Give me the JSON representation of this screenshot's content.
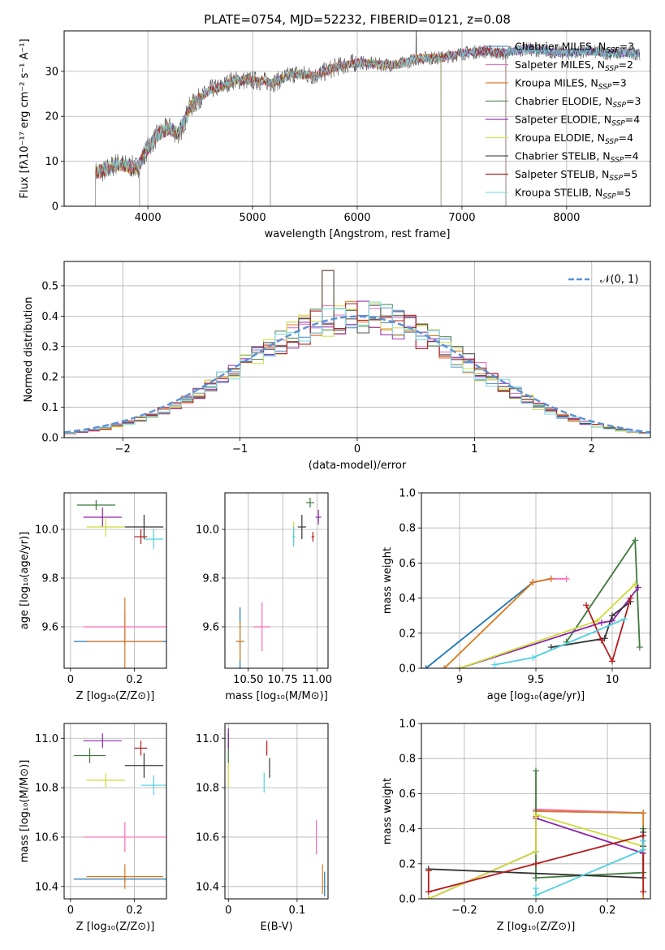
{
  "figure": {
    "title": "PLATE=0754, MJD=52232, FIBERID=0121, z=0.08"
  },
  "colors": {
    "models": [
      "#1f77b4",
      "#ff69b4",
      "#d97a1c",
      "#3d7a3d",
      "#8e24aa",
      "#cddc39",
      "#333333",
      "#b71c1c",
      "#4dd0e1"
    ],
    "spec_models": [
      "#5b8fd6",
      "#e377c2",
      "#e07b24",
      "#5a8a5a",
      "#9c3bb0",
      "#d4e157",
      "#555555",
      "#b22222",
      "#80deea"
    ],
    "normal_curve": "#5b8fd6",
    "grid": "#b0b0b0"
  },
  "chart_data": [
    {
      "type": "line",
      "panel": "spectrum",
      "xlabel": "wavelength [Angstrom, rest frame]",
      "ylabel": "Flux [fλ10⁻¹⁷ erg cm⁻² s⁻¹ A⁻¹]",
      "xlim": [
        3200,
        8800
      ],
      "ylim": [
        0,
        39
      ],
      "xticks": [
        4000,
        5000,
        6000,
        7000,
        8000
      ],
      "yticks": [
        0,
        10,
        20,
        30
      ],
      "continuum": {
        "x": [
          3500,
          3600,
          3700,
          3800,
          3900,
          4000,
          4100,
          4200,
          4300,
          4400,
          4500,
          4600,
          4700,
          4800,
          5000,
          5200,
          5400,
          5600,
          5800,
          6000,
          6200,
          6400,
          6600,
          6800,
          7000,
          7200,
          7400,
          7600,
          7800,
          8000,
          8200,
          8400,
          8700
        ],
        "y": [
          7.5,
          8,
          9.5,
          9,
          8.5,
          13,
          16,
          17.5,
          16,
          22,
          24,
          26,
          26.5,
          28,
          28,
          27.5,
          29.5,
          29,
          31,
          32,
          31.5,
          31.5,
          33,
          33,
          34,
          34.5,
          34,
          35,
          34.5,
          34,
          34.5,
          34,
          34
        ]
      },
      "series": [
        {
          "name": "Chabrier MILES, N$_{SSP}$=3",
          "label": "Chabrier MILES, N",
          "sub": "SSP",
          "suffix": "=3"
        },
        {
          "name": "Salpeter MILES, N$_{SSP}$=2",
          "label": "Salpeter MILES, N",
          "sub": "SSP",
          "suffix": "=2"
        },
        {
          "name": "Kroupa MILES, N$_{SSP}$=3",
          "label": "Kroupa MILES, N",
          "sub": "SSP",
          "suffix": "=3"
        },
        {
          "name": "Chabrier ELODIE, N$_{SSP}$=3",
          "label": "Chabrier ELODIE, N",
          "sub": "SSP",
          "suffix": "=3"
        },
        {
          "name": "Salpeter ELODIE, N$_{SSP}$=4",
          "label": "Salpeter ELODIE, N",
          "sub": "SSP",
          "suffix": "=4"
        },
        {
          "name": "Kroupa ELODIE, N$_{SSP}$=4",
          "label": "Kroupa ELODIE, N",
          "sub": "SSP",
          "suffix": "=4"
        },
        {
          "name": "Chabrier STELIB, N$_{SSP}$=4",
          "label": "Chabrier STELIB, N",
          "sub": "SSP",
          "suffix": "=4"
        },
        {
          "name": "Salpeter STELIB, N$_{SSP}$=5",
          "label": "Salpeter STELIB, N",
          "sub": "SSP",
          "suffix": "=5"
        },
        {
          "name": "Kroupa STELIB, N$_{SSP}$=5",
          "label": "Kroupa STELIB, N",
          "sub": "SSP",
          "suffix": "=5"
        }
      ],
      "features": [
        {
          "x": 5170,
          "y0": 0,
          "y1": 28
        },
        {
          "x": 6800,
          "y0": 0,
          "y1": 33
        },
        {
          "x": 7420,
          "y0": 0,
          "y1": 34
        },
        {
          "x": 3500,
          "y0": 0,
          "y1": 7
        },
        {
          "x": 3920,
          "y0": 0,
          "y1": 10
        }
      ]
    },
    {
      "type": "line",
      "panel": "residual-histogram",
      "xlabel": "(data-model)/error",
      "ylabel": "Normed distribution",
      "xlim": [
        -2.5,
        2.5
      ],
      "ylim": [
        0,
        0.58
      ],
      "xticks": [
        -2,
        -1,
        0,
        1,
        2
      ],
      "xtick_labels": [
        "−2",
        "−1",
        "0",
        "1",
        "2"
      ],
      "yticks": [
        0.0,
        0.1,
        0.2,
        0.3,
        0.4,
        0.5
      ],
      "legend": "𝒩(0, 1)",
      "bin_edges": [
        -2.5,
        -2.4,
        -2.3,
        -2.2,
        -2.1,
        -2.0,
        -1.9,
        -1.8,
        -1.7,
        -1.6,
        -1.5,
        -1.4,
        -1.3,
        -1.2,
        -1.1,
        -1.0,
        -0.9,
        -0.8,
        -0.7,
        -0.6,
        -0.5,
        -0.4,
        -0.3,
        -0.2,
        -0.1,
        0.0,
        0.1,
        0.2,
        0.3,
        0.4,
        0.5,
        0.6,
        0.7,
        0.8,
        0.9,
        1.0,
        1.1,
        1.2,
        1.3,
        1.4,
        1.5,
        1.6,
        1.7,
        1.8,
        1.9,
        2.0,
        2.1,
        2.2,
        2.3,
        2.4,
        2.5
      ],
      "normal": {
        "mu": 0,
        "sigma": 1
      }
    },
    {
      "type": "scatter",
      "panel": "age-vs-Z",
      "xlabel": "Z [log₁₀(Z/Z⊙)]",
      "ylabel": "age  [log₁₀(age/yr)]",
      "xlim": [
        -0.02,
        0.3
      ],
      "ylim": [
        9.43,
        10.15
      ],
      "xticks": [
        0.0,
        0.2
      ],
      "yticks": [
        9.6,
        9.8,
        10.0
      ],
      "points": [
        {
          "x": 0.17,
          "y": 9.54,
          "xerr": 0.16,
          "yerr": 0.0,
          "c": 0
        },
        {
          "x": 0.17,
          "y": 9.6,
          "xerr": 0.13,
          "yerr": 0.06,
          "c": 1
        },
        {
          "x": 0.17,
          "y": 9.54,
          "xerr": 0.12,
          "yerr": 0.18,
          "c": 2
        },
        {
          "x": 0.08,
          "y": 10.1,
          "xerr": 0.06,
          "yerr": 0.02,
          "c": 3
        },
        {
          "x": 0.1,
          "y": 10.05,
          "xerr": 0.06,
          "yerr": 0.04,
          "c": 4
        },
        {
          "x": 0.11,
          "y": 10.01,
          "xerr": 0.06,
          "yerr": 0.04,
          "c": 5
        },
        {
          "x": 0.23,
          "y": 10.01,
          "xerr": 0.06,
          "yerr": 0.05,
          "c": 6
        },
        {
          "x": 0.22,
          "y": 9.97,
          "xerr": 0.02,
          "yerr": 0.03,
          "c": 7
        },
        {
          "x": 0.26,
          "y": 9.96,
          "xerr": 0.03,
          "yerr": 0.04,
          "c": 8
        }
      ]
    },
    {
      "type": "scatter",
      "panel": "age-vs-mass",
      "xlabel": "mass [log₁₀(M/M⊙)]",
      "xlim": [
        10.33,
        11.08
      ],
      "ylim": [
        9.43,
        10.15
      ],
      "xticks": [
        10.5,
        10.75,
        11.0
      ],
      "xtick_labels": [
        "10.50",
        "10.75",
        "11.00"
      ],
      "yticks": [
        9.6,
        9.8,
        10.0
      ],
      "points": [
        {
          "x": 10.44,
          "y": 9.54,
          "xerr": 0.03,
          "yerr": 0.14,
          "c": 0
        },
        {
          "x": 10.6,
          "y": 9.6,
          "xerr": 0.06,
          "yerr": 0.1,
          "c": 1
        },
        {
          "x": 10.44,
          "y": 9.54,
          "xerr": 0.03,
          "yerr": 0.08,
          "c": 2
        },
        {
          "x": 10.95,
          "y": 10.11,
          "xerr": 0.03,
          "yerr": 0.02,
          "c": 3
        },
        {
          "x": 11.01,
          "y": 10.05,
          "xerr": 0.02,
          "yerr": 0.03,
          "c": 4
        },
        {
          "x": 10.83,
          "y": 9.99,
          "xerr": 0.0,
          "yerr": 0.04,
          "c": 5
        },
        {
          "x": 10.89,
          "y": 10.01,
          "xerr": 0.03,
          "yerr": 0.05,
          "c": 6
        },
        {
          "x": 10.97,
          "y": 9.97,
          "xerr": 0.01,
          "yerr": 0.02,
          "c": 7
        },
        {
          "x": 10.83,
          "y": 9.97,
          "xerr": 0.01,
          "yerr": 0.04,
          "c": 8
        }
      ]
    },
    {
      "type": "line",
      "panel": "mass-weight-vs-age",
      "xlabel": "age  [log₁₀(age/yr)]",
      "ylabel": "mass weight",
      "xlim": [
        8.75,
        10.25
      ],
      "ylim": [
        0,
        1.0
      ],
      "xticks": [
        9.0,
        9.5,
        10.0
      ],
      "yticks": [
        0.0,
        0.2,
        0.4,
        0.6,
        0.8,
        1.0
      ],
      "lines": [
        {
          "c": 0,
          "x": [
            8.78,
            9.48,
            9.6
          ],
          "y": [
            0.0,
            0.49,
            0.51
          ]
        },
        {
          "c": 1,
          "x": [
            9.48,
            9.6,
            9.7
          ],
          "y": [
            0.49,
            0.51,
            0.51
          ]
        },
        {
          "c": 2,
          "x": [
            8.9,
            9.48,
            9.6
          ],
          "y": [
            0.0,
            0.49,
            0.51
          ]
        },
        {
          "c": 3,
          "x": [
            9.7,
            10.15,
            10.18
          ],
          "y": [
            0.15,
            0.73,
            0.12
          ]
        },
        {
          "c": 4,
          "x": [
            9.0,
            9.93,
            10.0,
            10.17
          ],
          "y": [
            0.0,
            0.26,
            0.27,
            0.46
          ]
        },
        {
          "c": 5,
          "x": [
            9.0,
            9.9,
            10.15
          ],
          "y": [
            0.0,
            0.27,
            0.48
          ]
        },
        {
          "c": 6,
          "x": [
            9.6,
            9.95,
            10.0,
            10.12
          ],
          "y": [
            0.12,
            0.17,
            0.3,
            0.38
          ]
        },
        {
          "c": 7,
          "x": [
            9.83,
            9.93,
            10.0,
            10.12
          ],
          "y": [
            0.36,
            0.16,
            0.04,
            0.4
          ]
        },
        {
          "c": 8,
          "x": [
            9.23,
            9.48,
            10.08
          ],
          "y": [
            0.02,
            0.06,
            0.28
          ]
        }
      ]
    },
    {
      "type": "scatter",
      "panel": "mass-vs-Z",
      "xlabel": "Z [log₁₀(Z/Z⊙)]",
      "ylabel": "mass [log₁₀(M/M⊙)]",
      "xlim": [
        -0.02,
        0.3
      ],
      "ylim": [
        10.35,
        11.06
      ],
      "xticks": [
        0.0,
        0.2
      ],
      "yticks": [
        10.4,
        10.6,
        10.8,
        11.0
      ],
      "points": [
        {
          "x": 0.17,
          "y": 10.43,
          "xerr": 0.16,
          "yerr": 0.0,
          "c": 0
        },
        {
          "x": 0.17,
          "y": 10.6,
          "xerr": 0.13,
          "yerr": 0.06,
          "c": 1
        },
        {
          "x": 0.17,
          "y": 10.44,
          "xerr": 0.12,
          "yerr": 0.05,
          "c": 2
        },
        {
          "x": 0.06,
          "y": 10.93,
          "xerr": 0.05,
          "yerr": 0.03,
          "c": 3
        },
        {
          "x": 0.1,
          "y": 10.99,
          "xerr": 0.06,
          "yerr": 0.03,
          "c": 4
        },
        {
          "x": 0.11,
          "y": 10.83,
          "xerr": 0.06,
          "yerr": 0.03,
          "c": 5
        },
        {
          "x": 0.23,
          "y": 10.89,
          "xerr": 0.06,
          "yerr": 0.05,
          "c": 6
        },
        {
          "x": 0.22,
          "y": 10.96,
          "xerr": 0.02,
          "yerr": 0.03,
          "c": 7
        },
        {
          "x": 0.26,
          "y": 10.81,
          "xerr": 0.04,
          "yerr": 0.04,
          "c": 8
        }
      ]
    },
    {
      "type": "scatter",
      "panel": "mass-vs-EBV",
      "xlabel": "E(B-V)",
      "xlim": [
        -0.005,
        0.145
      ],
      "ylim": [
        10.35,
        11.06
      ],
      "xticks": [
        0.0,
        0.1
      ],
      "yticks": [
        10.4,
        10.6,
        10.8,
        11.0
      ],
      "points": [
        {
          "x": 0.14,
          "y": 10.41,
          "xerr": 0.0,
          "yerr": 0.05,
          "c": 0
        },
        {
          "x": 0.128,
          "y": 10.6,
          "xerr": 0.0,
          "yerr": 0.07,
          "c": 1
        },
        {
          "x": 0.137,
          "y": 10.43,
          "xerr": 0.0,
          "yerr": 0.06,
          "c": 2
        },
        {
          "x": 0.0,
          "y": 10.96,
          "xerr": 0.0,
          "yerr": 0.06,
          "c": 3
        },
        {
          "x": 0.0,
          "y": 11.0,
          "xerr": 0.0,
          "yerr": 0.04,
          "c": 4
        },
        {
          "x": 0.0,
          "y": 10.85,
          "xerr": 0.0,
          "yerr": 0.05,
          "c": 5
        },
        {
          "x": 0.06,
          "y": 10.88,
          "xerr": 0.0,
          "yerr": 0.04,
          "c": 6
        },
        {
          "x": 0.056,
          "y": 10.96,
          "xerr": 0.0,
          "yerr": 0.03,
          "c": 7
        },
        {
          "x": 0.052,
          "y": 10.82,
          "xerr": 0.0,
          "yerr": 0.04,
          "c": 8
        }
      ]
    },
    {
      "type": "line",
      "panel": "mass-weight-vs-Z",
      "xlabel": "Z [log₁₀(Z/Z⊙)]",
      "ylabel": "mass weight",
      "xlim": [
        -0.32,
        0.32
      ],
      "ylim": [
        0,
        1.0
      ],
      "xticks": [
        -0.2,
        0.0,
        0.2
      ],
      "xtick_labels": [
        "−0.2",
        "0.0",
        "0.2"
      ],
      "yticks": [
        0.0,
        0.2,
        0.4,
        0.6,
        0.8,
        1.0
      ],
      "lines": [
        {
          "c": 0,
          "x": [
            0.0,
            0.3
          ],
          "y": [
            0.5,
            0.49
          ]
        },
        {
          "c": 1,
          "x": [
            0.0,
            0.3
          ],
          "y": [
            0.51,
            0.49
          ]
        },
        {
          "c": 2,
          "x": [
            0.0,
            0.0,
            0.3,
            0.3
          ],
          "y": [
            0.47,
            0.5,
            0.49,
            0.0
          ]
        },
        {
          "c": 3,
          "x": [
            0.0,
            0.0,
            0.0,
            0.3,
            0.3
          ],
          "y": [
            0.73,
            0.12,
            0.12,
            0.15,
            0.4
          ]
        },
        {
          "c": 4,
          "x": [
            -0.3,
            0.0,
            0.0,
            0.3
          ],
          "y": [
            0.0,
            0.27,
            0.46,
            0.26
          ]
        },
        {
          "c": 5,
          "x": [
            -0.3,
            0.0,
            0.0,
            0.3
          ],
          "y": [
            0.0,
            0.27,
            0.48,
            0.3
          ]
        },
        {
          "c": 6,
          "x": [
            -0.3,
            0.3,
            0.3,
            0.3
          ],
          "y": [
            0.17,
            0.12,
            0.38,
            0.3
          ]
        },
        {
          "c": 7,
          "x": [
            -0.3,
            -0.3,
            0.0,
            0.3,
            0.3
          ],
          "y": [
            0.16,
            0.04,
            0.2,
            0.36,
            0.04
          ]
        },
        {
          "c": 8,
          "x": [
            0.0,
            0.0,
            0.3,
            0.3
          ],
          "y": [
            0.06,
            0.02,
            0.28,
            0.33
          ]
        }
      ]
    }
  ]
}
